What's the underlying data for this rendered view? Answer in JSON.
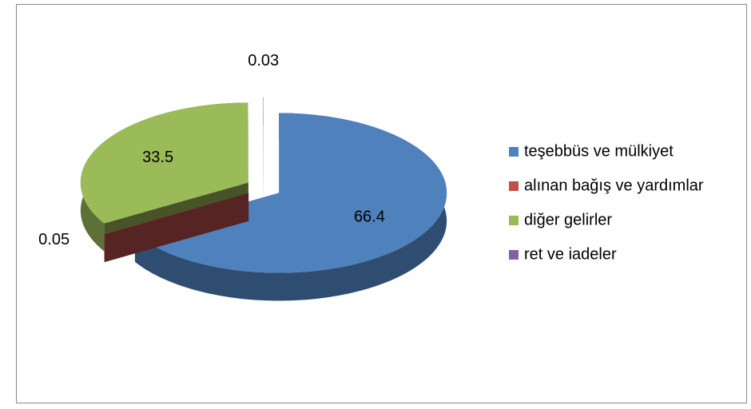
{
  "chart_data": {
    "type": "pie",
    "categories": [
      "teşebbüs ve mülkiyet",
      "alınan bağış ve yardımlar",
      "diğer gelirler",
      "ret ve iadeler"
    ],
    "values": [
      66.4,
      0.05,
      33.5,
      0.03
    ],
    "colors": [
      "#4f81bd",
      "#c0504d",
      "#9bbb59",
      "#8064a2"
    ],
    "legend": "right"
  }
}
